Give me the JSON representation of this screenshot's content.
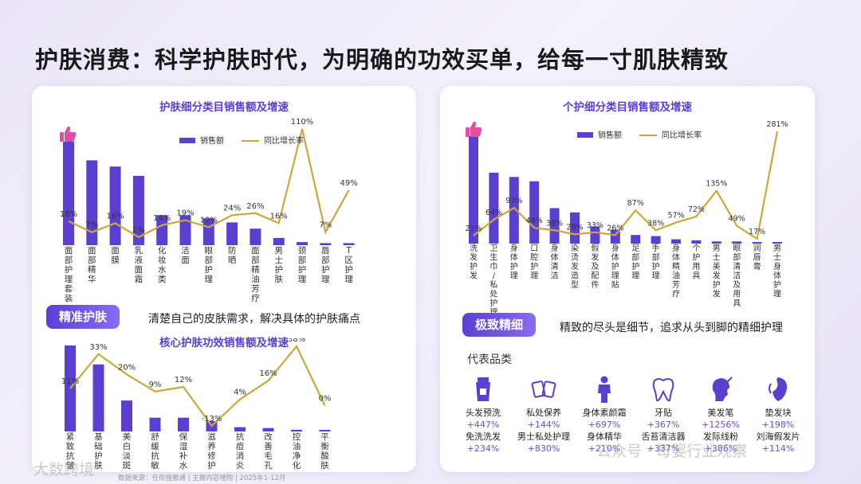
{
  "title": "护肤消费：科学护肤时代，为明确的功效买单，给每一寸肌肤精致",
  "colors": {
    "bar": "#5b3fd0",
    "line": "#c9a93a",
    "accent": "#7a5ce6"
  },
  "chart_data": [
    {
      "type": "bar",
      "title": "护肤细分类目销售额及增速",
      "legend": {
        "bar": "销售额",
        "line": "同比增长率"
      },
      "categories": [
        "面部护理套装",
        "面部精华",
        "面膜",
        "乳液面霜",
        "化妆水类",
        "洁面",
        "眼部护理",
        "防晒",
        "面部精油芳疗",
        "男士护肤",
        "颈部护理",
        "唇部护理",
        "T区护理"
      ],
      "series": [
        {
          "name": "销售额",
          "values": [
            100,
            82,
            76,
            67,
            29,
            29,
            26,
            22,
            16,
            7,
            3,
            2,
            2
          ]
        },
        {
          "name": "同比增长率",
          "values": [
            18,
            7,
            16,
            2,
            14,
            19,
            12,
            24,
            26,
            16,
            110,
            7,
            49
          ]
        }
      ],
      "line_labels": [
        "18%",
        "7%",
        "16%",
        "2%",
        "14%",
        "19%",
        "12%",
        "24%",
        "26%",
        "16%",
        "110%",
        "7%",
        "49%"
      ]
    },
    {
      "type": "bar",
      "title": "核心护肤功效销售额及增速",
      "categories": [
        "紧致抗皱",
        "基础护肤",
        "美白淡斑",
        "舒缓抗敏",
        "保湿补水",
        "滋养修护",
        "抗痘消炎",
        "改善毛孔",
        "控油净化",
        "平衡酸肤"
      ],
      "series": [
        {
          "name": "销售额",
          "values": [
            100,
            78,
            36,
            16,
            16,
            12,
            5,
            4,
            2,
            1
          ]
        },
        {
          "name": "同比增长率",
          "values": [
            11,
            33,
            20,
            9,
            12,
            -13,
            4,
            16,
            38,
            0
          ]
        }
      ],
      "line_labels": [
        "11%",
        "33%",
        "20%",
        "9%",
        "12%",
        "-13%",
        "4%",
        "16%",
        "38%",
        "0%"
      ]
    },
    {
      "type": "bar",
      "title": "个护细分类目销售额及增速",
      "legend": {
        "bar": "销售额",
        "line": "同比增长率"
      },
      "categories": [
        "洗发护发",
        "卫生巾/私处护理",
        "身体护理",
        "口腔护理",
        "身体清洁",
        "染烫发造型",
        "假发及配件",
        "身体护理贴",
        "足部护理",
        "手部护理",
        "身体精油芳疗",
        "个护用具",
        "男士美发护发",
        "眼部清洁及用具",
        "润唇膏",
        "男士身体护理"
      ],
      "series": [
        {
          "name": "销售额",
          "values": [
            100,
            66,
            62,
            58,
            33,
            29,
            16,
            13,
            8,
            7,
            4,
            3,
            2,
            2,
            1,
            1
          ]
        },
        {
          "name": "同比增长率",
          "values": [
            25,
            64,
            93,
            44,
            38,
            28,
            33,
            26,
            87,
            38,
            57,
            72,
            135,
            49,
            17,
            281
          ]
        }
      ],
      "line_labels": [
        "25%",
        "64%",
        "93%",
        "44%",
        "38%",
        "28%",
        "33%",
        "26%",
        "87%",
        "38%",
        "57%",
        "72%",
        "135%",
        "49%",
        "17%",
        "281%"
      ]
    }
  ],
  "badges": {
    "left": {
      "label": "精准护肤",
      "text": "清楚自己的皮肤需求，解决具体的护肤痛点"
    },
    "right": {
      "label": "极致精细",
      "text": "精致的尽头是细节，追求从头到脚的精细护理"
    }
  },
  "rep": {
    "title": "代表品类",
    "items": [
      {
        "icon": "shampoo-tube-icon",
        "n1": "头发预洗",
        "v1": "+447%",
        "n2": "免洗洗发",
        "v2": "+234%"
      },
      {
        "icon": "intimate-care-icon",
        "n1": "私处保养",
        "v1": "+144%",
        "n2": "男士私处护理",
        "v2": "+830%"
      },
      {
        "icon": "body-figure-icon",
        "n1": "身体素颜霜",
        "v1": "+697%",
        "n2": "身体精华",
        "v2": "+210%"
      },
      {
        "icon": "tooth-icon",
        "n1": "牙贴",
        "v1": "+367%",
        "n2": "舌苔清洁器",
        "v2": "+337%"
      },
      {
        "icon": "hair-profile-icon",
        "n1": "美发笔",
        "v1": "+1256%",
        "n2": "发际线粉",
        "v2": "+386%"
      },
      {
        "icon": "hair-pad-icon",
        "n1": "垫发块",
        "v1": "+198%",
        "n2": "刘海假发片",
        "v2": "+114%"
      }
    ]
  },
  "footer": "数据来源：任你搜搬通 | 主搬内容增购 | 2025年1-12月",
  "watermarks": {
    "left": "大数跨境",
    "right": "公众号 · 母婴行业观察"
  }
}
